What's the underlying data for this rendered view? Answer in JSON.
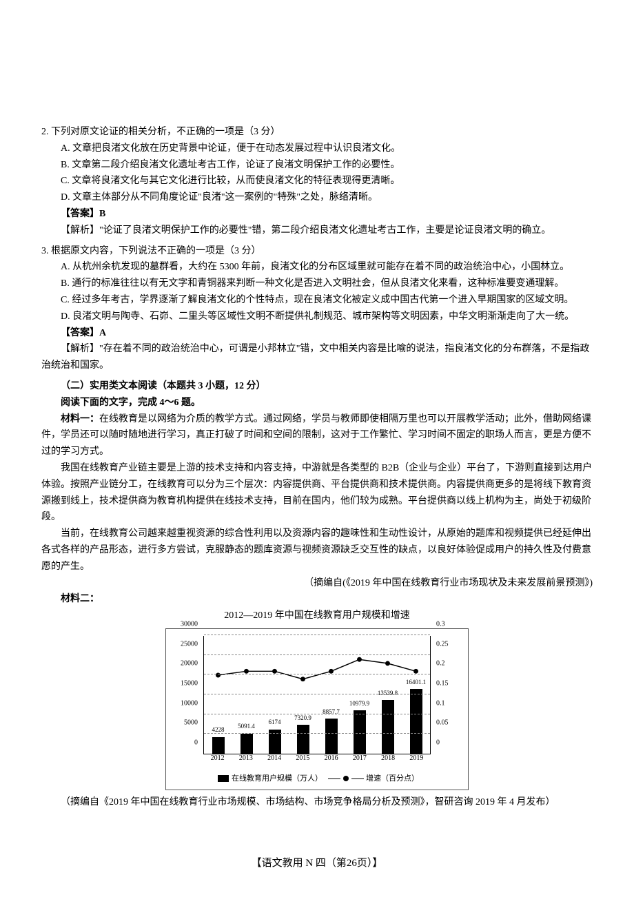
{
  "q2": {
    "stem": "2. 下列对原文论证的相关分析，不正确的一项是（3 分）",
    "A": "A. 文章把良渚文化放在历史背景中论证，便于在动态发展过程中认识良渚文化。",
    "B": "B. 文章第二段介绍良渚文化遗址考古工作，论证了良渚文明保护工作的必要性。",
    "C": "C. 文章将良渚文化与其它文化进行比较，从而使良渚文化的特征表现得更清晰。",
    "D": "D. 文章主体部分从不同角度论证\"良渚\"这一案例的\"特殊\"之处，脉络清晰。",
    "answer_label": "【答案】B",
    "explain_label": "【解析】\"论证了良渚文明保护工作的必要性\"错，第二段介绍良渚文化遗址考古工作，主要是论证良渚文明的确立。"
  },
  "q3": {
    "stem": "3. 根据原文内容，下列说法不正确的一项是（3 分）",
    "A": "A. 从杭州余杭发现的墓群看，大约在 5300 年前，良渚文化的分布区域里就可能存在着不同的政治统治中心，小国林立。",
    "B": "B. 通行的标准往往以有无文字和青铜器来判断一种文化是否进入文明社会，但从良渚文化来看，这种标准要变通理解。",
    "C": "C. 经过多年考古，学界逐渐了解良渚文化的个性特点，现在良渚文化被定义成中国古代第一个进入早期国家的区域文明。",
    "D": "D. 良渚文明与陶寺、石峁、二里头等区域性文明不断提供礼制规范、城市架构等文明因素，中华文明渐渐走向了大一统。",
    "answer_label": "【答案】A",
    "explain_label": "【解析】\"存在着不同的政治统治中心，可谓是小邦林立\"错，文中相关内容是比喻的说法，指良渚文化的分布群落，不是指政治统治和国家。"
  },
  "section2": {
    "title": "（二）实用类文本阅读（本题共 3 小题，12 分）",
    "instruction": "阅读下面的文字，完成 4～6 题。",
    "m1_label": "材料一：",
    "m1_p1": "在线教育是以网络为介质的教学方式。通过网络，学员与教师即使相隔万里也可以开展教学活动；此外，借助网络课件，学员还可以随时随地进行学习，真正打破了时间和空间的限制，这对于工作繁忙、学习时间不固定的职场人而言，更是方便不过的学习方式。",
    "m1_p2": "我国在线教育产业链主要是上游的技术支持和内容支持，中游就是各类型的 B2B（企业与企业）平台了，下游则直接到达用户体验。按照产业链分工，在线教育可以分为三个层次：内容提供商、平台提供商和技术提供商。内容提供商更多的是将线下教育资源搬到线上，技术提供商为教育机构提供在线技术支持，目前在国内，他们较为成熟。平台提供商以线上机构为主，尚处于初级阶段。",
    "m1_p3": "当前，在线教育公司越来越重视资源的综合性利用以及资源内容的趣味性和生动性设计，从原始的题库和视频提供已经延伸出各式各样的产品形态，进行多方尝试，克服静态的题库资源与视频资源缺乏交互性的缺点，以良好体验促成用户的持久性及付费意愿的产生。",
    "m1_attr": "（摘编自(《2019 年中国在线教育行业市场现状及未来发展前景预测》)",
    "m2_label": "材料二：",
    "m2_attr": "（摘编自《2019 年中国在线教育行业市场规模、市场结构、市场竞争格局分析及预测》，智研咨询 2019 年 4 月发布）"
  },
  "chart": {
    "title": "2012—2019 年中国在线教育用户规模和增速",
    "type": "bar+line",
    "background_color": "#ffffff",
    "grid_color": "#888888",
    "bar_color": "#000000",
    "line_color": "#000000",
    "categories": [
      "2012",
      "2013",
      "2014",
      "2015",
      "2016",
      "2017",
      "2018",
      "2019"
    ],
    "bar_values": [
      4228,
      5091.4,
      6174,
      7320.9,
      8857.7,
      10979.9,
      13539.8,
      16401.1
    ],
    "bar_value_labels": [
      "4228",
      "5091.4",
      "6174",
      "7320.9",
      "8857.7",
      "10979.9",
      "13539.8",
      "16401.1"
    ],
    "line_values": [
      0.2,
      0.21,
      0.21,
      0.19,
      0.21,
      0.24,
      0.23,
      0.21
    ],
    "y_left": {
      "min": 0,
      "max": 30000,
      "step": 5000,
      "ticks": [
        "0",
        "5000",
        "10000",
        "15000",
        "20000",
        "25000",
        "30000"
      ]
    },
    "y_right": {
      "min": 0,
      "max": 0.3,
      "step": 0.05,
      "ticks": [
        "0",
        "0.05",
        "0.1",
        "0.15",
        "0.2",
        "0.25",
        "0.3"
      ]
    },
    "legend_bar": "在线教育用户规模（万人）",
    "legend_line": "增速（百分点）",
    "title_fontsize": 14,
    "label_fontsize": 10
  },
  "footer": "【语文教用 N 四（第26页）】"
}
